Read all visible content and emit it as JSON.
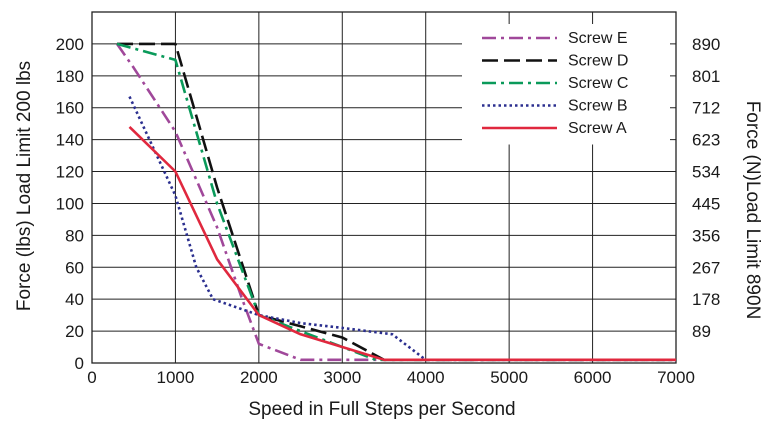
{
  "chart_data": {
    "type": "line",
    "xlabel": "Speed in Full Steps per Second",
    "ylabel": "Force (lbs) Load Limit 200 lbs",
    "y2label": "Force (N)Load Limit 890N",
    "xlim": [
      0,
      7000
    ],
    "ylim": [
      0,
      220
    ],
    "x_ticks": [
      0,
      1000,
      2000,
      3000,
      4000,
      5000,
      6000,
      7000
    ],
    "y_ticks": [
      0,
      20,
      40,
      60,
      80,
      100,
      120,
      140,
      160,
      180,
      200
    ],
    "y2_ticks": [
      {
        "label": "89",
        "value": 20
      },
      {
        "label": "178",
        "value": 40
      },
      {
        "label": "267",
        "value": 60
      },
      {
        "label": "356",
        "value": 80
      },
      {
        "label": "445",
        "value": 100
      },
      {
        "label": "534",
        "value": 120
      },
      {
        "label": "623",
        "value": 140
      },
      {
        "label": "712",
        "value": 160
      },
      {
        "label": "801",
        "value": 180
      },
      {
        "label": "890",
        "value": 200
      }
    ],
    "grid": true,
    "legend_position": "top-right",
    "series": [
      {
        "name": "Screw E",
        "color": "#a0489a",
        "dash": "dashdot",
        "x": [
          300,
          500,
          1000,
          1500,
          1800,
          2000,
          2500,
          3000,
          3500,
          7000
        ],
        "y": [
          200,
          185,
          145,
          85,
          40,
          12,
          2,
          2,
          2,
          2
        ]
      },
      {
        "name": "Screw D",
        "color": "#111111",
        "dash": "dash",
        "x": [
          300,
          1000,
          1500,
          2000,
          2500,
          3000,
          3500,
          7000
        ],
        "y": [
          200,
          200,
          110,
          30,
          23,
          16,
          2,
          2
        ]
      },
      {
        "name": "Screw C",
        "color": "#0a9a5a",
        "dash": "dashdot",
        "x": [
          300,
          1000,
          1500,
          2000,
          2500,
          3000,
          3400,
          7000
        ],
        "y": [
          200,
          190,
          100,
          30,
          20,
          10,
          2,
          2
        ]
      },
      {
        "name": "Screw B",
        "color": "#2b2f8f",
        "dash": "dot",
        "x": [
          450,
          1000,
          1250,
          1450,
          2000,
          2500,
          3000,
          3600,
          4000,
          7000
        ],
        "y": [
          167,
          105,
          60,
          40,
          30,
          25,
          22,
          18,
          2,
          2
        ]
      },
      {
        "name": "Screw A",
        "color": "#e0283e",
        "dash": "solid",
        "x": [
          450,
          1000,
          1500,
          2000,
          2500,
          3000,
          3500,
          7000
        ],
        "y": [
          148,
          120,
          65,
          30,
          18,
          10,
          2,
          2
        ]
      }
    ]
  }
}
